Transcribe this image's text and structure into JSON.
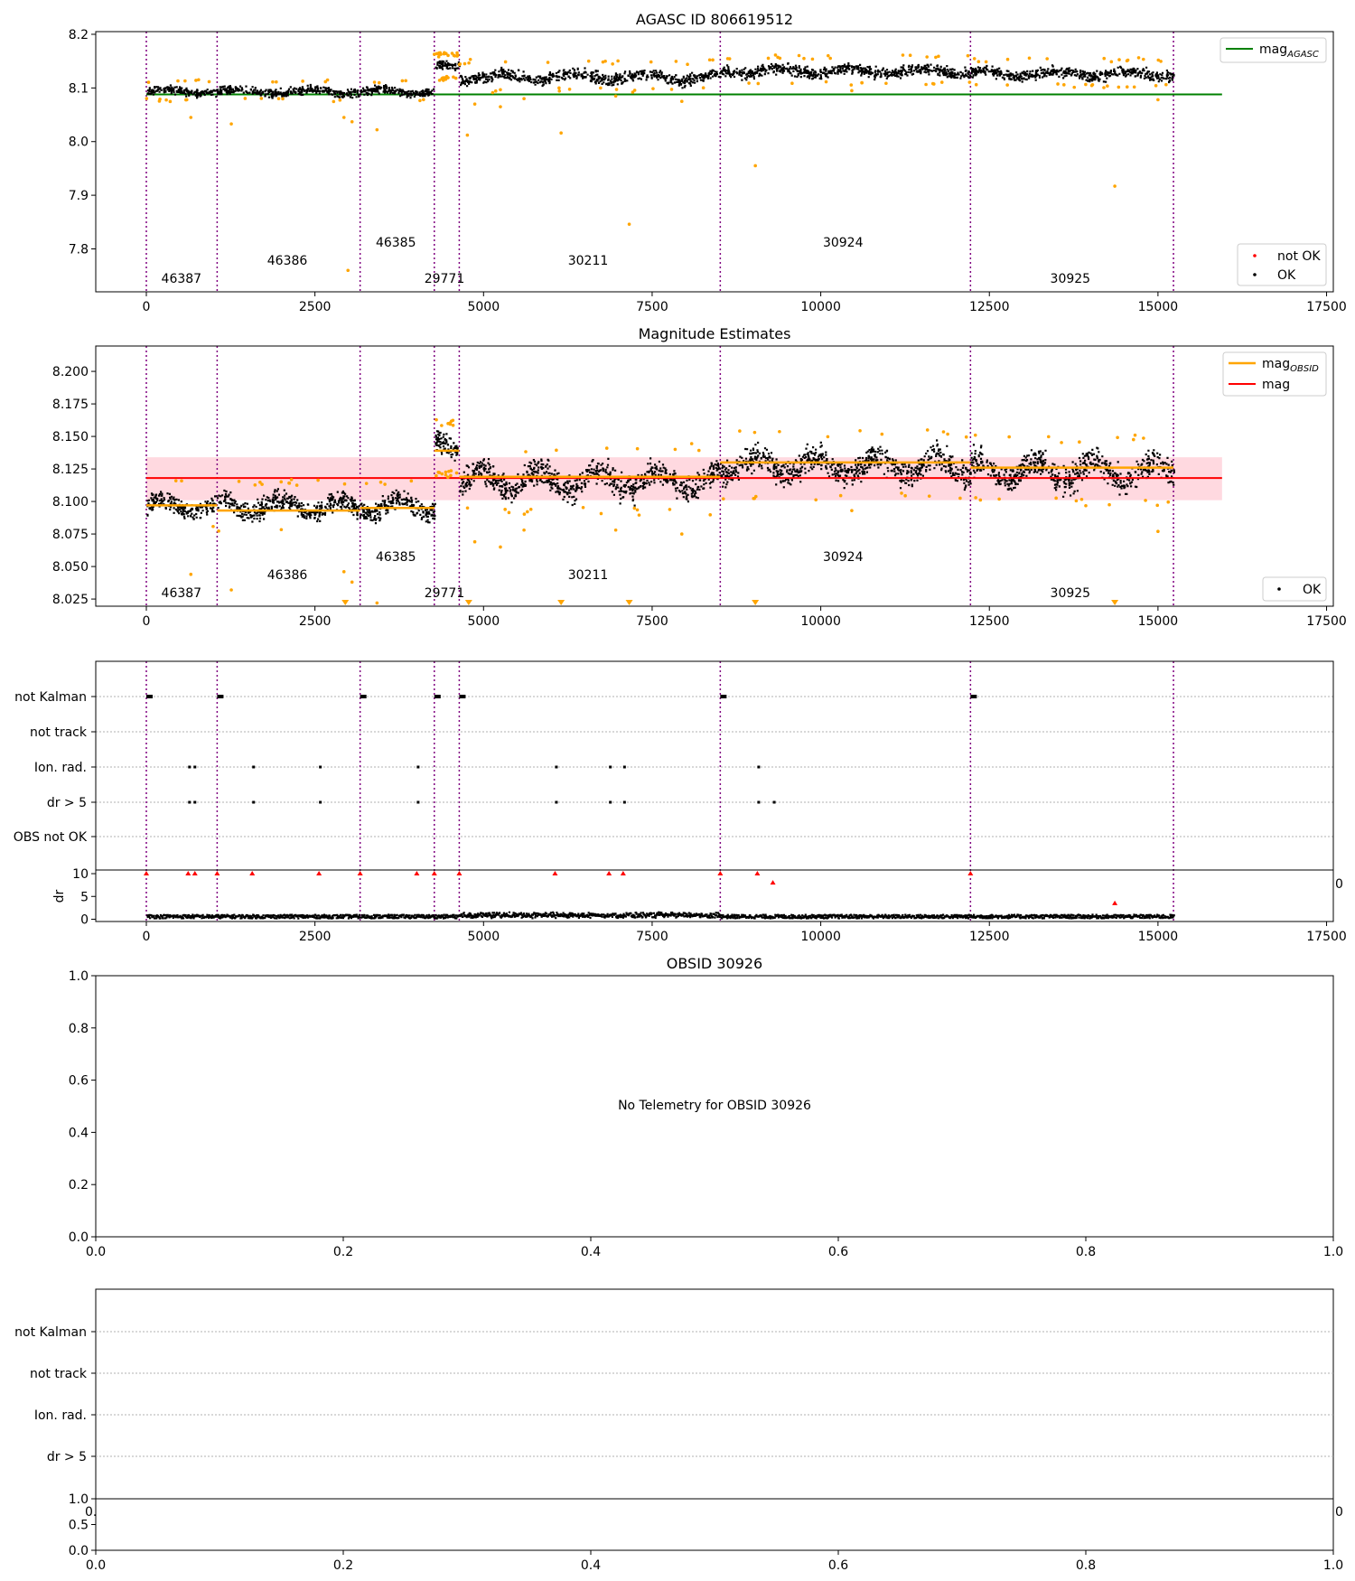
{
  "figure": {
    "title_top": "AGASC ID 806619512",
    "title_mag": "Magnitude Estimates",
    "title_obsid": "OBSID 30926"
  },
  "colors": {
    "ok": "#000000",
    "not_ok": "#ff0000",
    "orange": "#ffa500",
    "agasc_line": "#008000",
    "mag_line": "#ff0000",
    "band": "#ffc0cb",
    "obsid_boundary": "#800080",
    "grid": "#b0b0b0"
  },
  "obsid_boundaries": [
    0,
    1050,
    3170,
    4270,
    4640,
    8510,
    12220,
    15230
  ],
  "obsid_labels": [
    {
      "text": "46387",
      "x": 520,
      "tier": 1
    },
    {
      "text": "46386",
      "x": 2090,
      "tier": 2
    },
    {
      "text": "46385",
      "x": 3700,
      "tier": 3
    },
    {
      "text": "29771",
      "x": 4420,
      "tier": 1
    },
    {
      "text": "30211",
      "x": 6550,
      "tier": 2
    },
    {
      "text": "30924",
      "x": 10330,
      "tier": 3
    },
    {
      "text": "30925",
      "x": 13700,
      "tier": 1
    }
  ],
  "chart_data": [
    {
      "id": "agasc",
      "type": "scatter",
      "title": "AGASC ID 806619512",
      "xlim": [
        -750,
        17600
      ],
      "ylim": [
        7.72,
        8.205
      ],
      "xticks": [
        0,
        2500,
        5000,
        7500,
        10000,
        12500,
        15000,
        17500
      ],
      "yticks": [
        7.8,
        7.9,
        8.0,
        8.1,
        8.2
      ],
      "ytick_labels": [
        "7.8",
        "7.9",
        "8.0",
        "8.1",
        "8.2"
      ],
      "legend_top": {
        "placement": "top-right",
        "entries": [
          {
            "label": "mag",
            "sub": "AGASC"
          }
        ]
      },
      "legend_bottom": {
        "placement": "bottom-right",
        "entries": [
          {
            "label": "not OK"
          },
          {
            "label": "OK"
          }
        ]
      },
      "agasc_mag": 8.088,
      "agasc_line_x": [
        0,
        15950
      ],
      "segments": [
        {
          "x0": 0,
          "x1": 4270,
          "level": 8.095,
          "amp": 0.008
        },
        {
          "x0": 4270,
          "x1": 4640,
          "level": 8.14,
          "amp": 0.01
        },
        {
          "x0": 4640,
          "x1": 8510,
          "level": 8.122,
          "amp": 0.012
        },
        {
          "x0": 8510,
          "x1": 12220,
          "level": 8.133,
          "amp": 0.011
        },
        {
          "x0": 12220,
          "x1": 15230,
          "level": 8.128,
          "amp": 0.011
        }
      ],
      "outliers": [
        {
          "x": 660,
          "y": 8.045
        },
        {
          "x": 1260,
          "y": 8.033
        },
        {
          "x": 2930,
          "y": 8.045
        },
        {
          "x": 2990,
          "y": 7.76
        },
        {
          "x": 3050,
          "y": 8.037
        },
        {
          "x": 3420,
          "y": 8.022
        },
        {
          "x": 4760,
          "y": 8.012
        },
        {
          "x": 4870,
          "y": 8.07
        },
        {
          "x": 5250,
          "y": 8.065
        },
        {
          "x": 5600,
          "y": 8.08
        },
        {
          "x": 6150,
          "y": 8.016
        },
        {
          "x": 6960,
          "y": 8.085
        },
        {
          "x": 7160,
          "y": 7.846
        },
        {
          "x": 7940,
          "y": 8.075
        },
        {
          "x": 9030,
          "y": 7.955
        },
        {
          "x": 10460,
          "y": 8.095
        },
        {
          "x": 14360,
          "y": 7.917
        },
        {
          "x": 15000,
          "y": 8.078
        }
      ]
    },
    {
      "id": "mag",
      "type": "scatter",
      "title": "Magnitude Estimates",
      "xlim": [
        -750,
        17600
      ],
      "ylim": [
        8.0195,
        8.2195
      ],
      "xticks": [
        0,
        2500,
        5000,
        7500,
        10000,
        12500,
        15000,
        17500
      ],
      "yticks": [
        8.025,
        8.05,
        8.075,
        8.1,
        8.125,
        8.15,
        8.175,
        8.2
      ],
      "ytick_labels": [
        "8.025",
        "8.050",
        "8.075",
        "8.100",
        "8.125",
        "8.150",
        "8.175",
        "8.200"
      ],
      "legend_top": {
        "placement": "top-right",
        "entries": [
          {
            "label": "mag",
            "sub": "OBSID"
          },
          {
            "label": "mag"
          }
        ]
      },
      "legend_bottom": {
        "placement": "bottom-right",
        "entries": [
          {
            "label": "OK"
          }
        ]
      },
      "mag_mean": 8.118,
      "band": [
        8.101,
        8.134
      ],
      "mag_line_x": [
        0,
        15950
      ],
      "obsid_mags": [
        {
          "x0": 0,
          "x1": 1050,
          "y": 8.097
        },
        {
          "x0": 1050,
          "x1": 3170,
          "y": 8.093
        },
        {
          "x0": 3170,
          "x1": 4270,
          "y": 8.095
        },
        {
          "x0": 4270,
          "x1": 4640,
          "y": 8.139
        },
        {
          "x0": 4640,
          "x1": 8510,
          "y": 8.119
        },
        {
          "x0": 8510,
          "x1": 12220,
          "y": 8.13
        },
        {
          "x0": 12220,
          "x1": 15230,
          "y": 8.126
        }
      ],
      "segments": [
        {
          "x0": 0,
          "x1": 4270,
          "level": 8.097,
          "amp": 0.008
        },
        {
          "x0": 4270,
          "x1": 4640,
          "level": 8.141,
          "amp": 0.009
        },
        {
          "x0": 4640,
          "x1": 8510,
          "level": 8.117,
          "amp": 0.011
        },
        {
          "x0": 8510,
          "x1": 12220,
          "level": 8.128,
          "amp": 0.011
        },
        {
          "x0": 12220,
          "x1": 15230,
          "level": 8.124,
          "amp": 0.011
        }
      ],
      "outliers": [
        {
          "x": 660,
          "y": 8.044
        },
        {
          "x": 1260,
          "y": 8.032
        },
        {
          "x": 2930,
          "y": 8.046
        },
        {
          "x": 3050,
          "y": 8.038
        },
        {
          "x": 3420,
          "y": 8.022
        },
        {
          "x": 4870,
          "y": 8.069
        },
        {
          "x": 5250,
          "y": 8.065
        },
        {
          "x": 5600,
          "y": 8.078
        },
        {
          "x": 6960,
          "y": 8.078
        },
        {
          "x": 7940,
          "y": 8.075
        },
        {
          "x": 15000,
          "y": 8.077
        },
        {
          "x": 10460,
          "y": 8.093
        }
      ],
      "clipped_markers": [
        2950,
        4780,
        6150,
        7160,
        9030,
        14360
      ]
    },
    {
      "id": "flags",
      "type": "scatter",
      "xlim": [
        -750,
        17600
      ],
      "rows": [
        "not Kalman",
        "not track",
        "Ion. rad.",
        "dr > 5",
        "OBS not OK"
      ],
      "xticks": [
        0,
        2500,
        5000,
        7500,
        10000,
        12500,
        15000,
        17500
      ],
      "not_kalman_x": [
        0,
        1050,
        3170,
        4270,
        4640,
        8510,
        12220
      ],
      "ion_rad_x": [
        620,
        700,
        1570,
        2560,
        4010,
        6060,
        6860,
        7070,
        9060
      ],
      "dr5_x": [
        620,
        700,
        1570,
        2560,
        4010,
        6060,
        6860,
        7070,
        9060,
        9290
      ],
      "dr_ylabel": "dr",
      "dr_yticks": [
        0,
        5,
        10
      ],
      "dr_ylim": [
        -0.5,
        10.8
      ],
      "dr_high": [
        {
          "x": 0,
          "y": 10
        },
        {
          "x": 620,
          "y": 10
        },
        {
          "x": 720,
          "y": 10
        },
        {
          "x": 1050,
          "y": 10
        },
        {
          "x": 1570,
          "y": 10
        },
        {
          "x": 2560,
          "y": 10
        },
        {
          "x": 3170,
          "y": 10
        },
        {
          "x": 4010,
          "y": 10
        },
        {
          "x": 4270,
          "y": 10
        },
        {
          "x": 4640,
          "y": 10
        },
        {
          "x": 6060,
          "y": 10
        },
        {
          "x": 6860,
          "y": 10
        },
        {
          "x": 7070,
          "y": 10
        },
        {
          "x": 8510,
          "y": 10
        },
        {
          "x": 9060,
          "y": 10
        },
        {
          "x": 12220,
          "y": 10
        },
        {
          "x": 9290,
          "y": 8
        },
        {
          "x": 14360,
          "y": 3.5
        }
      ],
      "dr_baseline_x": [
        0,
        15230
      ],
      "right_cut_label": "0"
    },
    {
      "id": "obsid",
      "type": "scatter",
      "title": "OBSID 30926",
      "message": "No Telemetry for OBSID 30926",
      "xlim": [
        0,
        1
      ],
      "ylim": [
        0,
        1
      ],
      "xticks": [
        0,
        0.2,
        0.4,
        0.6,
        0.8,
        1.0
      ],
      "xtick_labels": [
        "0.0",
        "0.2",
        "0.4",
        "0.6",
        "0.8",
        "1.0"
      ],
      "yticks": [
        0,
        0.2,
        0.4,
        0.6,
        0.8,
        1.0
      ],
      "ytick_labels": [
        "0.0",
        "0.2",
        "0.4",
        "0.6",
        "0.8",
        "1.0"
      ]
    },
    {
      "id": "obsid_flags",
      "type": "scatter",
      "rows": [
        "not Kalman",
        "not track",
        "Ion. rad.",
        "dr > 5"
      ],
      "small_yticks": [
        0,
        0.5,
        1.0
      ],
      "small_ytick_labels": [
        "0.0",
        "0.5",
        "1.0"
      ],
      "xticks": [
        0,
        0.2,
        0.4,
        0.6,
        0.8,
        1.0
      ],
      "xtick_labels": [
        "0.0",
        "0.2",
        "0.4",
        "0.6",
        "0.8",
        "1.0"
      ],
      "left_cut_label": "0.",
      "right_cut_label": "0"
    }
  ]
}
